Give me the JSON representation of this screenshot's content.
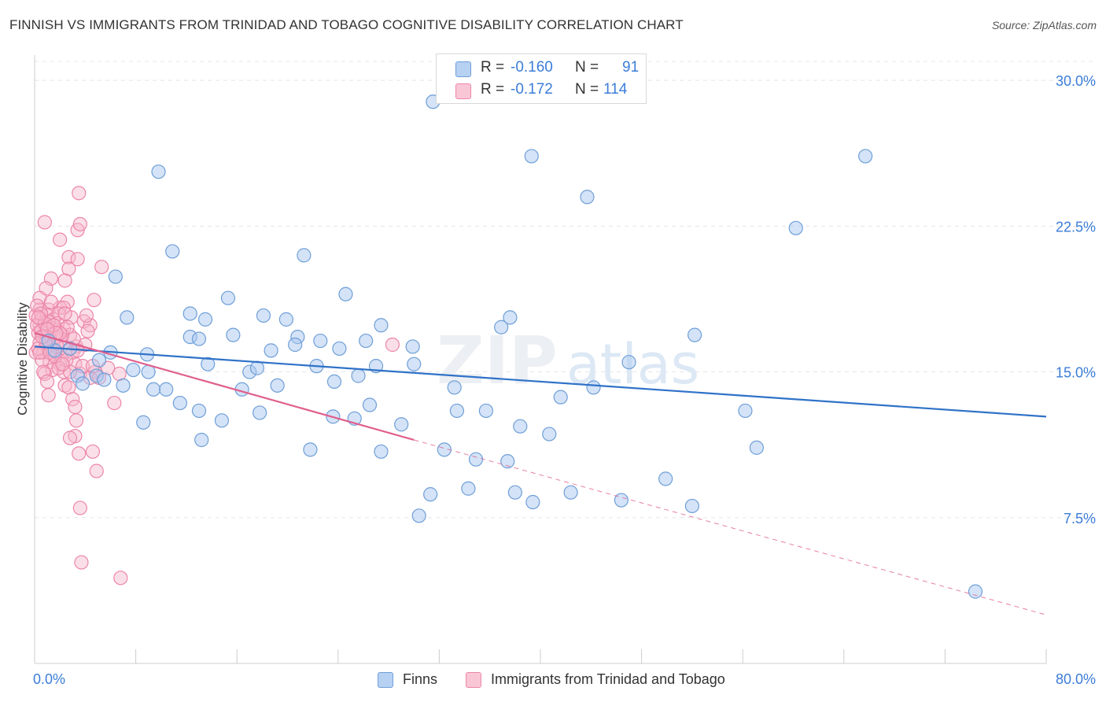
{
  "title": "FINNISH VS IMMIGRANTS FROM TRINIDAD AND TOBAGO COGNITIVE DISABILITY CORRELATION CHART",
  "source": "Source: ZipAtlas.com",
  "legend": {
    "finns": {
      "r_label": "R = ",
      "r_value": "-0.160",
      "n_label": "N = ",
      "n_value": "91"
    },
    "trinidad": {
      "r_label": "R = ",
      "r_value": "-0.172",
      "n_label": "N = ",
      "n_value": "114"
    }
  },
  "bottom_legend": {
    "finns": "Finns",
    "trinidad": "Immigrants from Trinidad and Tobago"
  },
  "colors": {
    "finns_fill": "#a9c8ef",
    "finns_stroke": "#6f9fd8",
    "finns_line": "#2f72c8",
    "trin_fill": "#f7b9cd",
    "trin_stroke": "#ec86a9",
    "trin_line": "#e0608e",
    "value_text": "#3b7dd8",
    "grid": "#e5e5e5"
  },
  "chart_data": {
    "type": "scatter",
    "title": "FINNISH VS IMMIGRANTS FROM TRINIDAD AND TOBAGO COGNITIVE DISABILITY CORRELATION CHART",
    "xlabel": "",
    "ylabel": "Cognitive Disability",
    "xlim": [
      0,
      80
    ],
    "ylim": [
      0,
      31.3
    ],
    "x_tick_labels": [
      "0.0%",
      "80.0%"
    ],
    "y_ticks": [
      7.5,
      15.0,
      22.5,
      30.0
    ],
    "y_tick_labels": [
      "7.5%",
      "15.0%",
      "22.5%",
      "30.0%"
    ],
    "grid": true,
    "legend_position": "top-center",
    "watermark": "ZIPatlas",
    "series": [
      {
        "name": "Finns",
        "trend": {
          "x0": 0,
          "y0": 16.3,
          "x1": 80,
          "y1": 12.7
        },
        "points": [
          [
            31.5,
            28.9
          ],
          [
            39.2,
            29.8
          ],
          [
            9.8,
            25.3
          ],
          [
            39.3,
            26.1
          ],
          [
            65.7,
            26.1
          ],
          [
            43.7,
            24.0
          ],
          [
            60.2,
            22.4
          ],
          [
            10.9,
            21.2
          ],
          [
            21.3,
            21.0
          ],
          [
            6.4,
            19.9
          ],
          [
            24.6,
            19.0
          ],
          [
            15.3,
            18.8
          ],
          [
            7.3,
            17.8
          ],
          [
            12.3,
            18.0
          ],
          [
            18.1,
            17.9
          ],
          [
            19.9,
            17.7
          ],
          [
            37.6,
            17.8
          ],
          [
            13.5,
            17.7
          ],
          [
            36.9,
            17.3
          ],
          [
            27.4,
            17.4
          ],
          [
            15.7,
            16.9
          ],
          [
            20.8,
            16.8
          ],
          [
            12.3,
            16.8
          ],
          [
            13.0,
            16.7
          ],
          [
            22.6,
            16.6
          ],
          [
            26.2,
            16.6
          ],
          [
            52.2,
            16.9
          ],
          [
            20.6,
            16.4
          ],
          [
            18.7,
            16.1
          ],
          [
            24.1,
            16.2
          ],
          [
            29.9,
            16.3
          ],
          [
            1.6,
            16.1
          ],
          [
            8.9,
            15.9
          ],
          [
            5.1,
            15.6
          ],
          [
            13.7,
            15.4
          ],
          [
            22.3,
            15.3
          ],
          [
            27.0,
            15.3
          ],
          [
            17.0,
            15.0
          ],
          [
            17.6,
            15.2
          ],
          [
            7.8,
            15.1
          ],
          [
            25.6,
            14.8
          ],
          [
            3.4,
            14.8
          ],
          [
            4.9,
            14.8
          ],
          [
            5.5,
            14.6
          ],
          [
            23.7,
            14.5
          ],
          [
            3.8,
            14.4
          ],
          [
            7.0,
            14.3
          ],
          [
            9.4,
            14.1
          ],
          [
            10.4,
            14.1
          ],
          [
            16.4,
            14.1
          ],
          [
            19.2,
            14.3
          ],
          [
            33.2,
            14.2
          ],
          [
            44.2,
            14.2
          ],
          [
            41.6,
            13.7
          ],
          [
            11.5,
            13.4
          ],
          [
            26.5,
            13.3
          ],
          [
            33.4,
            13.0
          ],
          [
            35.7,
            13.0
          ],
          [
            17.8,
            12.9
          ],
          [
            56.2,
            13.0
          ],
          [
            23.6,
            12.7
          ],
          [
            25.3,
            12.6
          ],
          [
            14.8,
            12.5
          ],
          [
            8.6,
            12.4
          ],
          [
            29.0,
            12.3
          ],
          [
            38.4,
            12.2
          ],
          [
            40.7,
            11.8
          ],
          [
            13.2,
            11.5
          ],
          [
            21.8,
            11.0
          ],
          [
            27.4,
            10.9
          ],
          [
            32.4,
            11.0
          ],
          [
            57.1,
            11.1
          ],
          [
            34.9,
            10.5
          ],
          [
            37.4,
            10.4
          ],
          [
            49.9,
            9.5
          ],
          [
            34.3,
            9.0
          ],
          [
            31.3,
            8.7
          ],
          [
            38.0,
            8.8
          ],
          [
            42.4,
            8.8
          ],
          [
            39.4,
            8.3
          ],
          [
            46.4,
            8.4
          ],
          [
            52.0,
            8.1
          ],
          [
            30.4,
            7.6
          ],
          [
            74.4,
            3.7
          ],
          [
            1.1,
            16.6
          ],
          [
            2.8,
            16.2
          ],
          [
            6.0,
            16.0
          ],
          [
            9.0,
            15.0
          ],
          [
            30.0,
            15.4
          ],
          [
            47.0,
            15.5
          ],
          [
            13.0,
            13.0
          ]
        ]
      },
      {
        "name": "Immigrants from Trinidad and Tobago",
        "trend": {
          "x0": 0,
          "y0": 17.0,
          "x1": 30.0,
          "y1": 11.5,
          "dash_x1": 80,
          "dash_y1": 2.5
        },
        "points": [
          [
            3.5,
            24.2
          ],
          [
            0.8,
            22.7
          ],
          [
            3.4,
            22.3
          ],
          [
            3.6,
            22.6
          ],
          [
            2.0,
            21.8
          ],
          [
            2.7,
            20.9
          ],
          [
            3.4,
            20.8
          ],
          [
            2.7,
            20.3
          ],
          [
            5.3,
            20.4
          ],
          [
            1.3,
            19.8
          ],
          [
            2.4,
            19.7
          ],
          [
            0.9,
            19.3
          ],
          [
            0.4,
            18.8
          ],
          [
            2.6,
            18.6
          ],
          [
            4.7,
            18.7
          ],
          [
            0.4,
            18.2
          ],
          [
            1.1,
            18.2
          ],
          [
            2.0,
            18.3
          ],
          [
            2.3,
            18.3
          ],
          [
            0.1,
            17.9
          ],
          [
            0.5,
            17.7
          ],
          [
            1.0,
            17.9
          ],
          [
            1.5,
            17.7
          ],
          [
            3.9,
            17.6
          ],
          [
            0.4,
            17.4
          ],
          [
            1.2,
            17.3
          ],
          [
            4.4,
            17.4
          ],
          [
            0.3,
            17.0
          ],
          [
            0.9,
            17.1
          ],
          [
            1.6,
            17.2
          ],
          [
            2.3,
            17.2
          ],
          [
            4.2,
            17.1
          ],
          [
            0.8,
            16.8
          ],
          [
            1.2,
            16.7
          ],
          [
            2.8,
            16.9
          ],
          [
            0.4,
            16.5
          ],
          [
            1.5,
            16.4
          ],
          [
            3.3,
            16.3
          ],
          [
            2.6,
            16.1
          ],
          [
            0.1,
            16.0
          ],
          [
            0.7,
            16.0
          ],
          [
            1.5,
            15.9
          ],
          [
            2.1,
            15.7
          ],
          [
            1.2,
            15.5
          ],
          [
            2.0,
            15.4
          ],
          [
            3.2,
            15.4
          ],
          [
            4.8,
            15.0
          ],
          [
            1.4,
            15.1
          ],
          [
            2.3,
            15.0
          ],
          [
            0.8,
            14.9
          ],
          [
            3.6,
            14.9
          ],
          [
            4.4,
            14.7
          ],
          [
            5.1,
            14.7
          ],
          [
            6.7,
            14.9
          ],
          [
            2.4,
            14.3
          ],
          [
            2.7,
            14.2
          ],
          [
            1.1,
            13.8
          ],
          [
            3.0,
            13.6
          ],
          [
            3.2,
            13.2
          ],
          [
            6.3,
            13.4
          ],
          [
            3.3,
            12.5
          ],
          [
            3.2,
            11.7
          ],
          [
            2.8,
            11.6
          ],
          [
            3.5,
            10.8
          ],
          [
            4.6,
            10.9
          ],
          [
            4.9,
            9.9
          ],
          [
            3.6,
            8.0
          ],
          [
            3.7,
            5.2
          ],
          [
            6.8,
            4.4
          ],
          [
            28.3,
            16.4
          ],
          [
            1.9,
            18.0
          ],
          [
            1.0,
            16.3
          ],
          [
            0.6,
            15.6
          ],
          [
            2.1,
            16.6
          ],
          [
            1.8,
            17.5
          ],
          [
            0.2,
            17.4
          ],
          [
            1.4,
            16.1
          ],
          [
            3.0,
            16.0
          ],
          [
            0.7,
            15.0
          ],
          [
            2.5,
            15.6
          ],
          [
            1.7,
            16.8
          ],
          [
            0.3,
            16.2
          ],
          [
            1.1,
            17.6
          ],
          [
            2.2,
            16.9
          ],
          [
            3.8,
            15.3
          ],
          [
            0.5,
            17.1
          ],
          [
            1.9,
            15.2
          ],
          [
            2.9,
            17.8
          ],
          [
            0.9,
            16.5
          ],
          [
            1.3,
            18.6
          ],
          [
            4.0,
            16.4
          ],
          [
            0.2,
            18.4
          ],
          [
            2.6,
            17.3
          ],
          [
            1.6,
            15.8
          ],
          [
            0.6,
            16.8
          ],
          [
            3.1,
            16.7
          ],
          [
            1.0,
            14.5
          ],
          [
            2.4,
            18.0
          ],
          [
            0.4,
            16.0
          ],
          [
            1.8,
            16.3
          ],
          [
            5.8,
            15.2
          ],
          [
            4.1,
            17.9
          ],
          [
            1.2,
            16.0
          ],
          [
            0.8,
            17.5
          ],
          [
            2.0,
            17.0
          ],
          [
            3.4,
            16.1
          ],
          [
            0.5,
            18.0
          ],
          [
            1.5,
            17.4
          ],
          [
            2.8,
            15.0
          ],
          [
            0.3,
            17.8
          ],
          [
            1.7,
            17.0
          ],
          [
            4.6,
            15.3
          ],
          [
            2.2,
            15.4
          ],
          [
            1.0,
            17.2
          ]
        ]
      }
    ]
  }
}
